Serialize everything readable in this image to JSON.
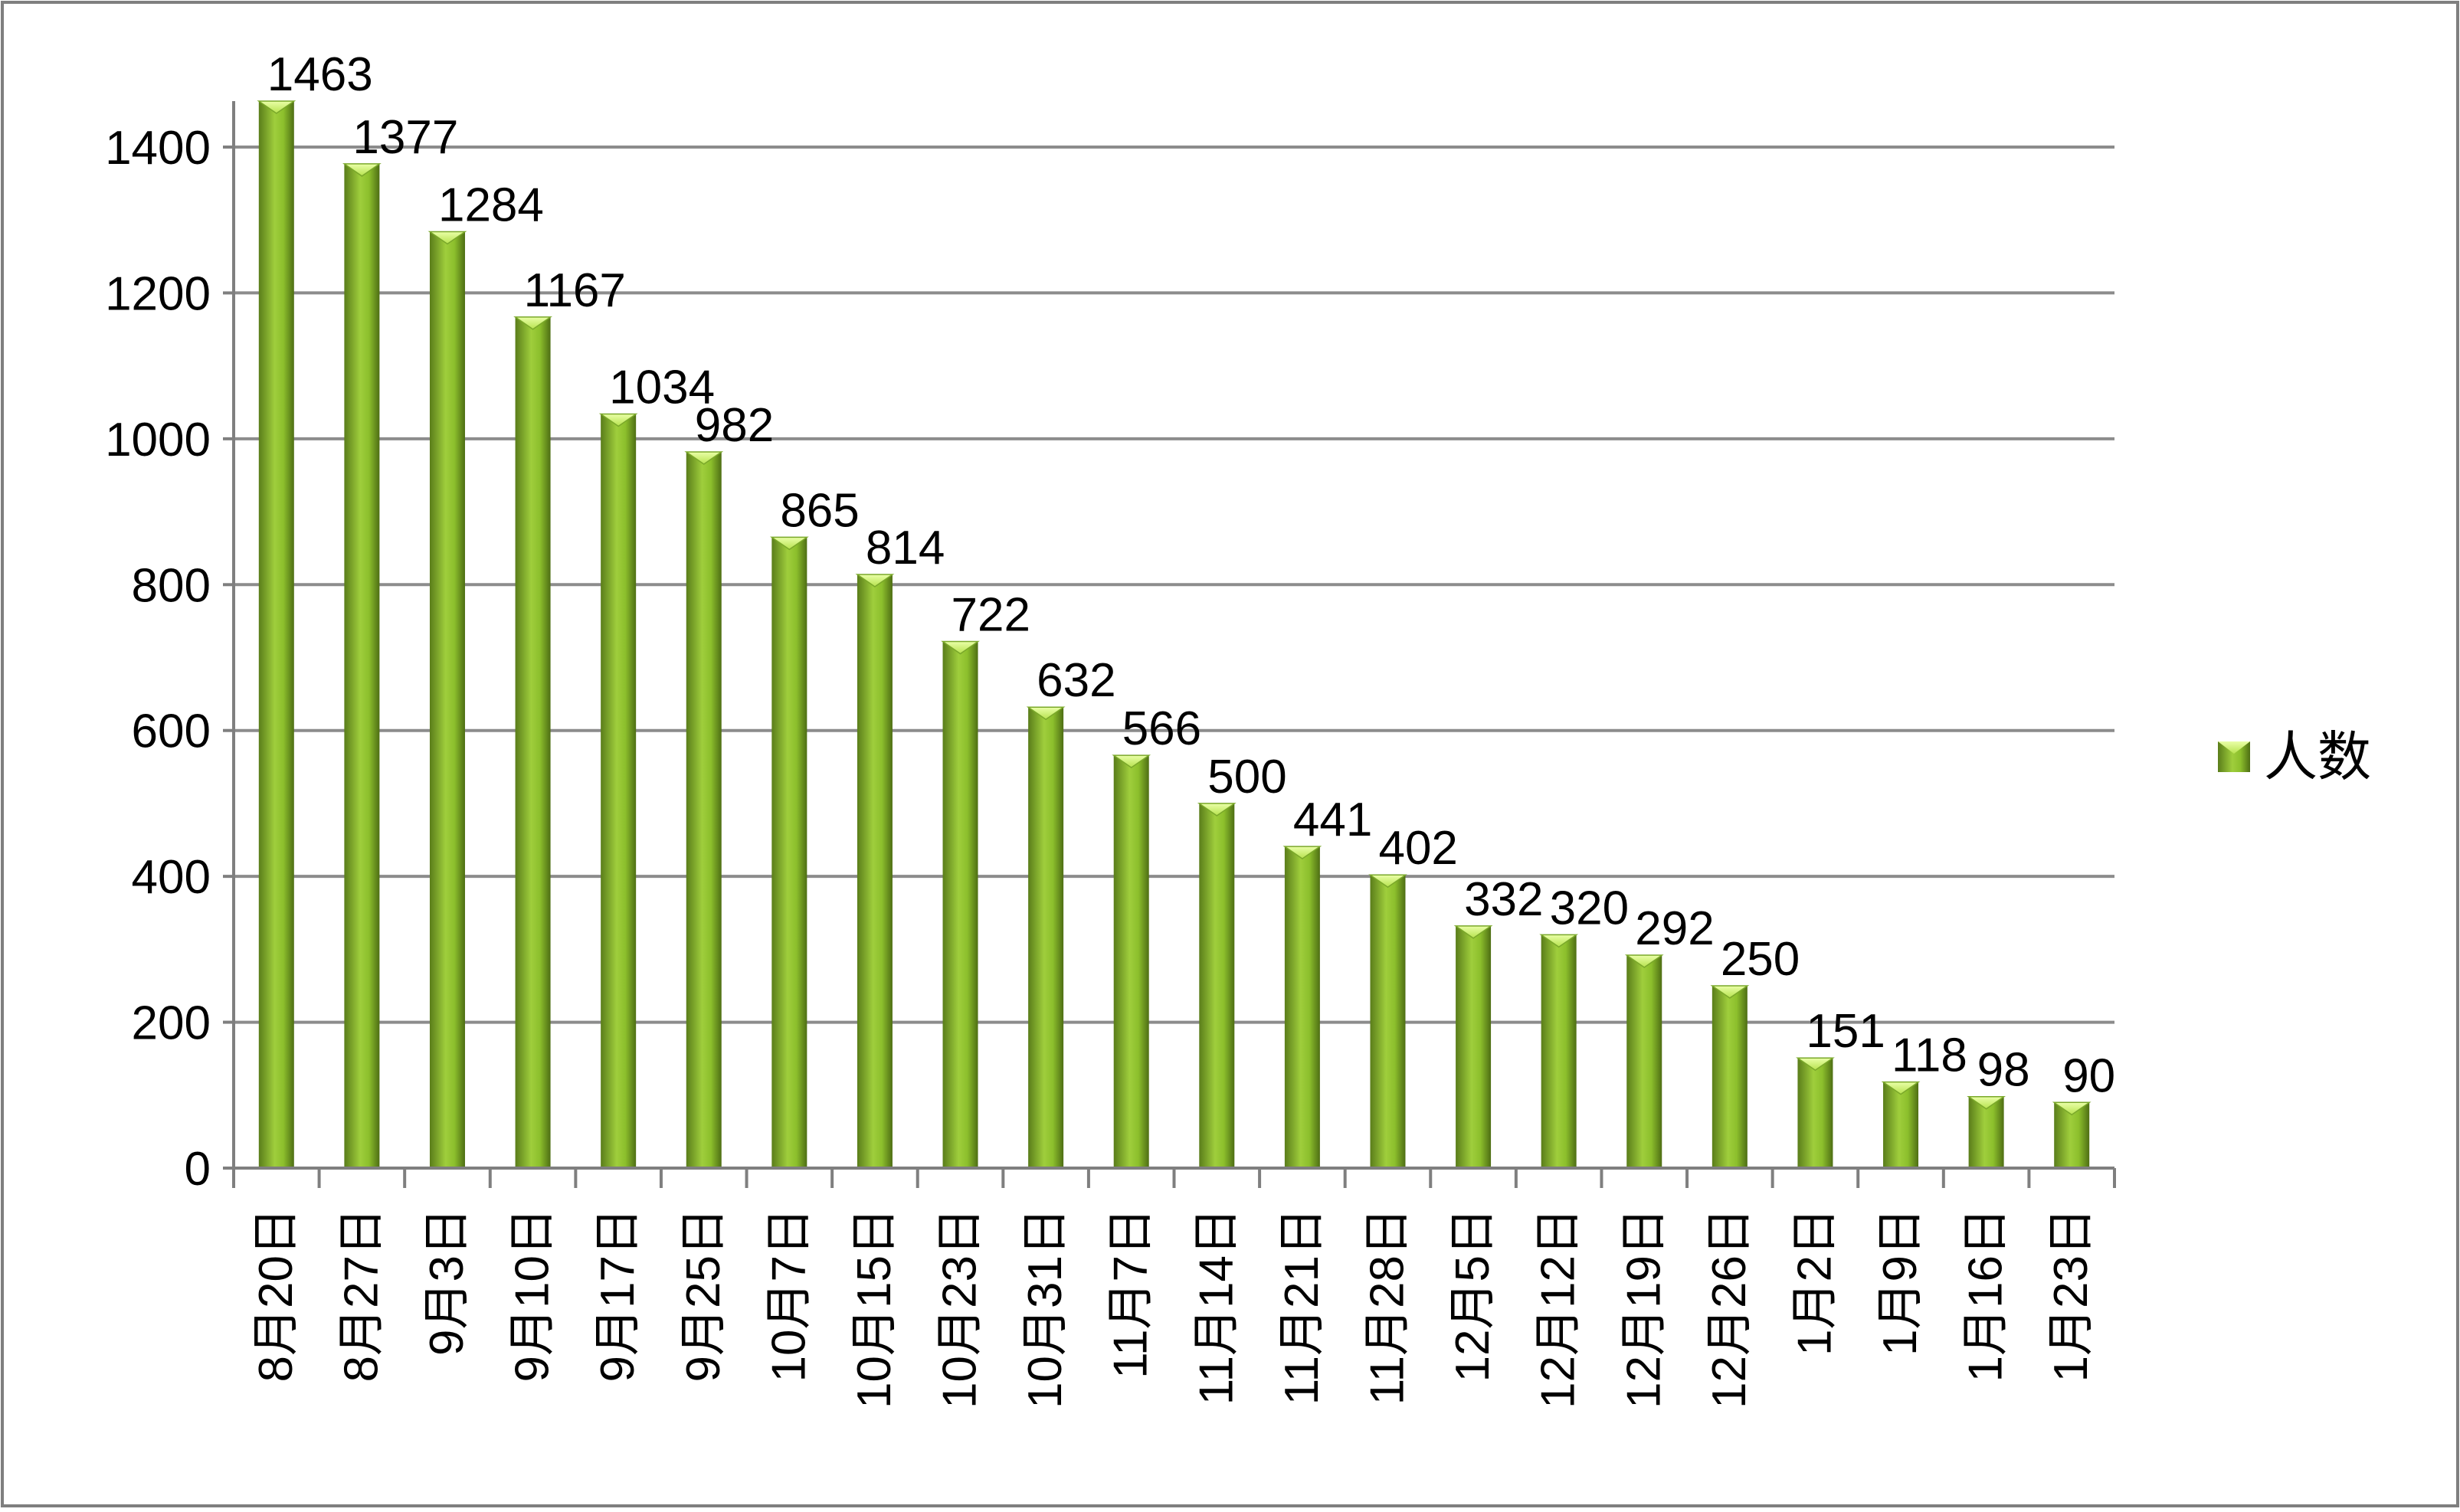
{
  "chart_data": {
    "type": "bar",
    "categories": [
      "8月20日",
      "8月27日",
      "9月3日",
      "9月10日",
      "9月17日",
      "9月25日",
      "10月7日",
      "10月15日",
      "10月23日",
      "10月31日",
      "11月7日",
      "11月14日",
      "11月21日",
      "11月28日",
      "12月5日",
      "12月12日",
      "12月19日",
      "12月26日",
      "1月2日",
      "1月9日",
      "1月16日",
      "1月23日"
    ],
    "series": [
      {
        "name": "人数",
        "values": [
          1463,
          1377,
          1284,
          1167,
          1034,
          982,
          865,
          814,
          722,
          632,
          566,
          500,
          441,
          402,
          332,
          320,
          292,
          250,
          151,
          118,
          98,
          90
        ]
      }
    ],
    "title": "",
    "xlabel": "",
    "ylabel": "",
    "ylim": [
      0,
      1400
    ],
    "yticks": [
      0,
      200,
      400,
      600,
      800,
      1000,
      1200,
      1400
    ],
    "grid": true,
    "legend_position": "right",
    "colors": {
      "bar_dark": "#5a7d1a",
      "bar_mid": "#8cbf2c",
      "bar_light": "#c8ec6a",
      "grid": "#8c8c8c",
      "axis": "#7f7f7f",
      "border": "#7f7f7f"
    }
  }
}
